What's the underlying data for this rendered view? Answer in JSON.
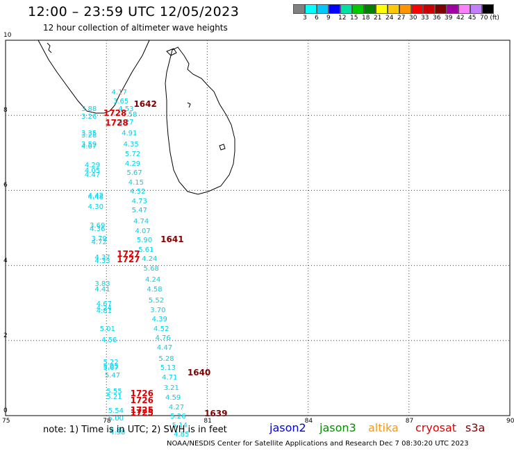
{
  "header": {
    "title": "12:00 – 23:59 UTC 12/05/2023",
    "subtitle": "12 hour collection of altimeter wave heights"
  },
  "colorbar": {
    "colors": [
      "#808080",
      "#00ffff",
      "#00c8ff",
      "#0000ff",
      "#00e0a0",
      "#00c800",
      "#008000",
      "#ffff00",
      "#ffc800",
      "#ff9600",
      "#ff0000",
      "#c80000",
      "#800000",
      "#a000a0",
      "#ff80ff",
      "#c080ff",
      "#000000"
    ],
    "labels": [
      "3",
      "6",
      "9",
      "12",
      "15",
      "18",
      "21",
      "24",
      "27",
      "30",
      "33",
      "36",
      "39",
      "42",
      "45",
      "70 (ft)"
    ]
  },
  "axes": {
    "x_labels": [
      "75",
      "78",
      "81",
      "84",
      "87",
      "90"
    ],
    "y_labels": [
      "0",
      "2",
      "4",
      "6",
      "8",
      "10"
    ]
  },
  "times": [
    {
      "t": "1642",
      "color": "#800000",
      "lon": 79.1,
      "lat": 8.3
    },
    {
      "t": "1728",
      "color": "#e00000",
      "lon": 78.2,
      "lat": 8.05
    },
    {
      "t": "1728",
      "color": "#e00000",
      "lon": 78.25,
      "lat": 7.8
    },
    {
      "t": "1641",
      "color": "#800000",
      "lon": 79.9,
      "lat": 4.7
    },
    {
      "t": "1727",
      "color": "#e00000",
      "lon": 78.6,
      "lat": 4.3
    },
    {
      "t": "1727",
      "color": "#e00000",
      "lon": 78.6,
      "lat": 4.15
    },
    {
      "t": "1640",
      "color": "#800000",
      "lon": 80.7,
      "lat": 1.15
    },
    {
      "t": "1726",
      "color": "#e00000",
      "lon": 79.0,
      "lat": 0.6
    },
    {
      "t": "1726",
      "color": "#e00000",
      "lon": 79.0,
      "lat": 0.4
    },
    {
      "t": "1725",
      "color": "#e00000",
      "lon": 79.0,
      "lat": 0.15
    },
    {
      "t": "1725",
      "color": "#e00000",
      "lon": 79.0,
      "lat": 0.08
    },
    {
      "t": "1639",
      "color": "#800000",
      "lon": 81.2,
      "lat": 0.05
    }
  ],
  "waves": [
    {
      "v": "4.17",
      "lon": 78.4,
      "lat": 8.6
    },
    {
      "v": "3.65",
      "lon": 78.45,
      "lat": 8.35
    },
    {
      "v": "3.88",
      "lon": 77.5,
      "lat": 8.15
    },
    {
      "v": "4.53",
      "lon": 78.6,
      "lat": 8.15
    },
    {
      "v": "4.58",
      "lon": 78.7,
      "lat": 8.0
    },
    {
      "v": "3.26",
      "lon": 77.5,
      "lat": 7.95
    },
    {
      "v": "4.27",
      "lon": 78.6,
      "lat": 7.8
    },
    {
      "v": "3.35",
      "lon": 77.5,
      "lat": 7.5
    },
    {
      "v": "3.28",
      "lon": 77.5,
      "lat": 7.45
    },
    {
      "v": "4.91",
      "lon": 78.7,
      "lat": 7.5
    },
    {
      "v": "3.59",
      "lon": 77.5,
      "lat": 7.2
    },
    {
      "v": "4.07",
      "lon": 77.5,
      "lat": 7.15
    },
    {
      "v": "4.35",
      "lon": 78.75,
      "lat": 7.2
    },
    {
      "v": "5.72",
      "lon": 78.8,
      "lat": 6.95
    },
    {
      "v": "4.29",
      "lon": 77.6,
      "lat": 6.65
    },
    {
      "v": "4.05",
      "lon": 77.6,
      "lat": 6.5
    },
    {
      "v": "4.47",
      "lon": 77.6,
      "lat": 6.4
    },
    {
      "v": "4.29",
      "lon": 78.8,
      "lat": 6.7
    },
    {
      "v": "5.67",
      "lon": 78.85,
      "lat": 6.45
    },
    {
      "v": "4.15",
      "lon": 78.9,
      "lat": 6.2
    },
    {
      "v": "4.52",
      "lon": 78.95,
      "lat": 5.95
    },
    {
      "v": "4.42",
      "lon": 77.7,
      "lat": 5.85
    },
    {
      "v": "4.48",
      "lon": 77.7,
      "lat": 5.8
    },
    {
      "v": "4.30",
      "lon": 77.7,
      "lat": 5.55
    },
    {
      "v": "4.73",
      "lon": 79.0,
      "lat": 5.7
    },
    {
      "v": "5.47",
      "lon": 79.0,
      "lat": 5.45
    },
    {
      "v": "3.69",
      "lon": 77.75,
      "lat": 5.05
    },
    {
      "v": "4.36",
      "lon": 77.75,
      "lat": 4.95
    },
    {
      "v": "4.74",
      "lon": 79.05,
      "lat": 5.15
    },
    {
      "v": "4.07",
      "lon": 79.1,
      "lat": 4.9
    },
    {
      "v": "3.79",
      "lon": 77.8,
      "lat": 4.7
    },
    {
      "v": "4.72",
      "lon": 77.8,
      "lat": 4.6
    },
    {
      "v": "5.90",
      "lon": 79.15,
      "lat": 4.65
    },
    {
      "v": "5.61",
      "lon": 79.2,
      "lat": 4.4
    },
    {
      "v": "4.37",
      "lon": 77.9,
      "lat": 4.2
    },
    {
      "v": "4.33",
      "lon": 77.9,
      "lat": 4.1
    },
    {
      "v": "4.24",
      "lon": 79.3,
      "lat": 4.15
    },
    {
      "v": "5.68",
      "lon": 79.35,
      "lat": 3.9
    },
    {
      "v": "4.24",
      "lon": 79.4,
      "lat": 3.6
    },
    {
      "v": "3.83",
      "lon": 77.9,
      "lat": 3.5
    },
    {
      "v": "4.41",
      "lon": 77.9,
      "lat": 3.35
    },
    {
      "v": "4.58",
      "lon": 79.45,
      "lat": 3.35
    },
    {
      "v": "5.52",
      "lon": 79.5,
      "lat": 3.05
    },
    {
      "v": "4.67",
      "lon": 77.95,
      "lat": 2.95
    },
    {
      "v": "4.24",
      "lon": 77.95,
      "lat": 2.85
    },
    {
      "v": "4.81",
      "lon": 77.95,
      "lat": 2.78
    },
    {
      "v": "3.70",
      "lon": 79.55,
      "lat": 2.8
    },
    {
      "v": "4.39",
      "lon": 79.6,
      "lat": 2.55
    },
    {
      "v": "5.01",
      "lon": 78.05,
      "lat": 2.3
    },
    {
      "v": "4.52",
      "lon": 79.65,
      "lat": 2.3
    },
    {
      "v": "4.76",
      "lon": 79.7,
      "lat": 2.05
    },
    {
      "v": "4.56",
      "lon": 78.1,
      "lat": 2.0
    },
    {
      "v": "4.47",
      "lon": 79.75,
      "lat": 1.8
    },
    {
      "v": "5.28",
      "lon": 79.8,
      "lat": 1.5
    },
    {
      "v": "5.22",
      "lon": 78.15,
      "lat": 1.4
    },
    {
      "v": "5.05",
      "lon": 78.15,
      "lat": 1.3
    },
    {
      "v": "5.67",
      "lon": 78.15,
      "lat": 1.25
    },
    {
      "v": "5.13",
      "lon": 79.85,
      "lat": 1.25
    },
    {
      "v": "5.47",
      "lon": 78.2,
      "lat": 1.05
    },
    {
      "v": "4.71",
      "lon": 79.9,
      "lat": 1.0
    },
    {
      "v": "3.21",
      "lon": 79.95,
      "lat": 0.72
    },
    {
      "v": "5.55",
      "lon": 78.25,
      "lat": 0.62
    },
    {
      "v": "5.21",
      "lon": 78.25,
      "lat": 0.48
    },
    {
      "v": "4.59",
      "lon": 80.0,
      "lat": 0.47
    },
    {
      "v": "4.27",
      "lon": 80.1,
      "lat": 0.2
    },
    {
      "v": "5.54",
      "lon": 78.3,
      "lat": 0.12
    },
    {
      "v": "5.26",
      "lon": 80.15,
      "lat": -0.03
    },
    {
      "v": "5.00",
      "lon": 78.3,
      "lat": -0.1
    },
    {
      "v": "5.14",
      "lon": 80.2,
      "lat": -0.28
    },
    {
      "v": "4.81",
      "lon": 78.35,
      "lat": -0.4
    },
    {
      "v": "4.85",
      "lon": 80.25,
      "lat": -0.52
    },
    {
      "v": "4.98",
      "lon": 78.35,
      "lat": -0.46
    }
  ],
  "note": "note:  1) Time is in UTC; 2) SWH is in feet",
  "satellites": [
    {
      "name": "jason2",
      "color": "#0000e0"
    },
    {
      "name": "jason3",
      "color": "#009000"
    },
    {
      "name": "altika",
      "color": "#ff9900"
    },
    {
      "name": "cryosat",
      "color": "#e00000"
    },
    {
      "name": "s3a",
      "color": "#800000"
    }
  ],
  "footer": "NOAA/NESDIS Center for Satellite Applications and Research    Dec  7 08:30:20 UTC 2023"
}
